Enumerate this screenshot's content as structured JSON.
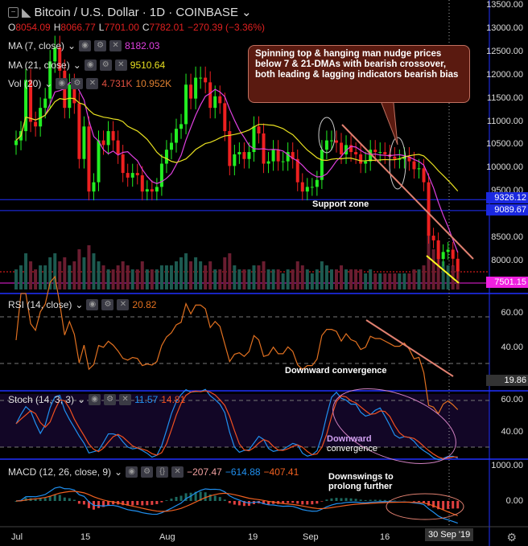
{
  "header": {
    "title": "Bitcoin / U.S. Dollar · 1D · COINBASE",
    "o_label": "O",
    "o": "8054.09",
    "h_label": "H",
    "h": "8066.77",
    "l_label": "L",
    "l": "7701.00",
    "c_label": "C",
    "c": "7782.01",
    "change": "−270.39 (−3.36%)"
  },
  "indicators": {
    "ma7": {
      "label": "MA (7, close)",
      "value": "8182.03",
      "color": "#e040e0"
    },
    "ma21": {
      "label": "MA (21, close)",
      "value": "9510.64",
      "color": "#e8e020"
    },
    "vol": {
      "label": "Vol (20)",
      "value1": "4.731K",
      "value2": "10.952K"
    },
    "rsi": {
      "label": "RSI (14, close)",
      "value": "20.82"
    },
    "stoch": {
      "label": "Stoch (14, 3, 3)",
      "k": "11.57",
      "d": "14.81"
    },
    "macd": {
      "label": "MACD (12, 26, close, 9)",
      "hist": "−207.47",
      "macd": "−614.88",
      "signal": "−407.41"
    }
  },
  "annotations": {
    "main": "Spinning top & hanging man nudge prices below 7 & 21-DMAs with bearish crossover, both leading & lagging indicators bearish bias",
    "support": "Support zone",
    "rsi": "Downward convergence",
    "stoch1": "Downward",
    "stoch2": "convergence",
    "macd": "Downswings to prolong further"
  },
  "price_axis": [
    "13500.00",
    "13000.00",
    "12500.00",
    "12000.00",
    "11500.00",
    "11000.00",
    "10500.00",
    "10000.00",
    "9500.00",
    "8500.00",
    "8000.00"
  ],
  "price_tags": {
    "s1": "9326.12",
    "s2": "9089.67",
    "last": "7501.15"
  },
  "rsi_axis": [
    "60.00",
    "40.00"
  ],
  "rsi_tag": "19.86",
  "stoch_axis": [
    "60.00",
    "40.00"
  ],
  "macd_axis": [
    "1000.00",
    "0.00"
  ],
  "time_axis": [
    "Jul",
    "15",
    "Aug",
    "19",
    "Sep",
    "16"
  ],
  "time_cursor": "30 Sep '19",
  "chart_data": {
    "type": "candlestick",
    "title": "Bitcoin / U.S. Dollar 1D COINBASE",
    "x_range": [
      "2019-07-01",
      "2019-09-30"
    ],
    "ylim": [
      7500,
      13500
    ],
    "closes": [
      10600,
      10800,
      11900,
      11000,
      10900,
      11300,
      11500,
      12300,
      12600,
      12100,
      11300,
      11800,
      11400,
      10200,
      10900,
      9500,
      9700,
      10600,
      10500,
      10800,
      10600,
      10300,
      9900,
      9800,
      9900,
      9850,
      9500,
      9550,
      9500,
      9600,
      10100,
      10400,
      10550,
      10850,
      10950,
      11800,
      11500,
      11950,
      11950,
      11850,
      11300,
      11550,
      11400,
      10800,
      10050,
      10300,
      10350,
      10200,
      10350,
      10900,
      10750,
      10100,
      10150,
      10400,
      10150,
      10150,
      10350,
      10200,
      9700,
      9500,
      9600,
      9600,
      9750,
      10400,
      10600,
      10600,
      10550,
      10300,
      10500,
      10350,
      10300,
      10100,
      10150,
      10400,
      10350,
      10350,
      10300,
      10250,
      10200,
      10200,
      10250,
      10150,
      9980,
      10000,
      9700,
      8550,
      8450,
      8050,
      8200,
      8250,
      8054,
      7782
    ],
    "volumes": [
      5,
      6,
      9,
      7,
      5,
      6,
      6,
      8,
      9,
      7,
      8,
      6,
      7,
      10,
      8,
      11,
      9,
      7,
      6,
      5,
      5,
      6,
      7,
      6,
      5,
      5,
      7,
      5,
      5,
      5,
      6,
      6,
      6,
      7,
      8,
      9,
      7,
      8,
      7,
      6,
      7,
      5,
      5,
      8,
      9,
      6,
      5,
      5,
      5,
      6,
      6,
      7,
      5,
      5,
      5,
      4,
      5,
      5,
      7,
      6,
      5,
      4,
      5,
      7,
      6,
      5,
      5,
      6,
      5,
      5,
      5,
      5,
      4,
      5,
      4,
      4,
      4,
      4,
      4,
      4,
      4,
      4,
      5,
      5,
      6,
      14,
      10,
      9,
      7,
      6,
      6,
      5
    ]
  }
}
